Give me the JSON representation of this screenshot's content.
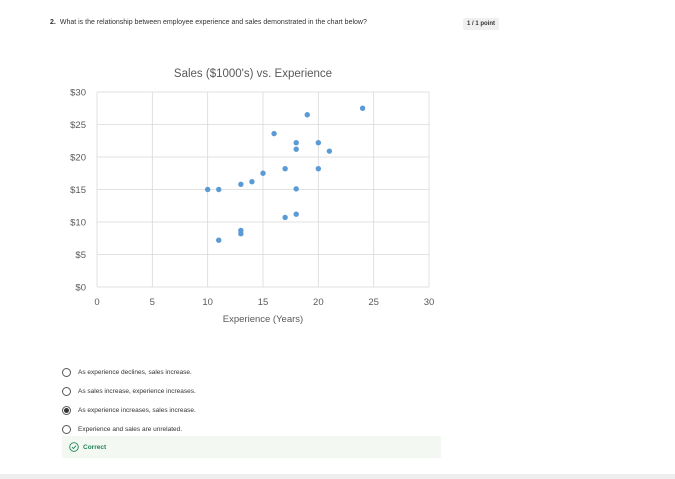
{
  "question": {
    "number": "2.",
    "text": "What is the relationship between employee experience and sales demonstrated in the chart below?",
    "points": "1 / 1 point"
  },
  "chart_data": {
    "type": "scatter",
    "title": "Sales ($1000's) vs. Experience",
    "xlabel": "Experience (Years)",
    "ylabel": "",
    "xlim": [
      0,
      30
    ],
    "ylim": [
      0,
      30
    ],
    "xticks": [
      0,
      5,
      10,
      15,
      20,
      25,
      30
    ],
    "yticks": [
      0,
      5,
      10,
      15,
      20,
      25,
      30
    ],
    "ytick_labels": [
      "$0",
      "$5",
      "$10",
      "$15",
      "$20",
      "$25",
      "$30"
    ],
    "grid": true,
    "marker_color": "#5b9bd5",
    "points": [
      {
        "x": 10,
        "y": 15
      },
      {
        "x": 11,
        "y": 15
      },
      {
        "x": 11,
        "y": 7.2
      },
      {
        "x": 13,
        "y": 8.2
      },
      {
        "x": 13,
        "y": 8.7
      },
      {
        "x": 13,
        "y": 15.8
      },
      {
        "x": 14,
        "y": 16.2
      },
      {
        "x": 15,
        "y": 17.5
      },
      {
        "x": 16,
        "y": 23.6
      },
      {
        "x": 17,
        "y": 18.2
      },
      {
        "x": 17,
        "y": 10.7
      },
      {
        "x": 18,
        "y": 11.2
      },
      {
        "x": 18,
        "y": 15.1
      },
      {
        "x": 18,
        "y": 21.2
      },
      {
        "x": 18,
        "y": 22.2
      },
      {
        "x": 19,
        "y": 26.5
      },
      {
        "x": 20,
        "y": 22.2
      },
      {
        "x": 20,
        "y": 18.2
      },
      {
        "x": 21,
        "y": 20.9
      },
      {
        "x": 24,
        "y": 27.5
      }
    ]
  },
  "options": [
    {
      "label": "As experience declines, sales increase.",
      "checked": false
    },
    {
      "label": "As sales increase, experience increases.",
      "checked": false
    },
    {
      "label": "As experience increases, sales increase.",
      "checked": true
    },
    {
      "label": "Experience and sales are unrelated.",
      "checked": false
    }
  ],
  "feedback": {
    "text": "Correct",
    "icon": "check-circle-icon",
    "color": "#1f8354"
  }
}
